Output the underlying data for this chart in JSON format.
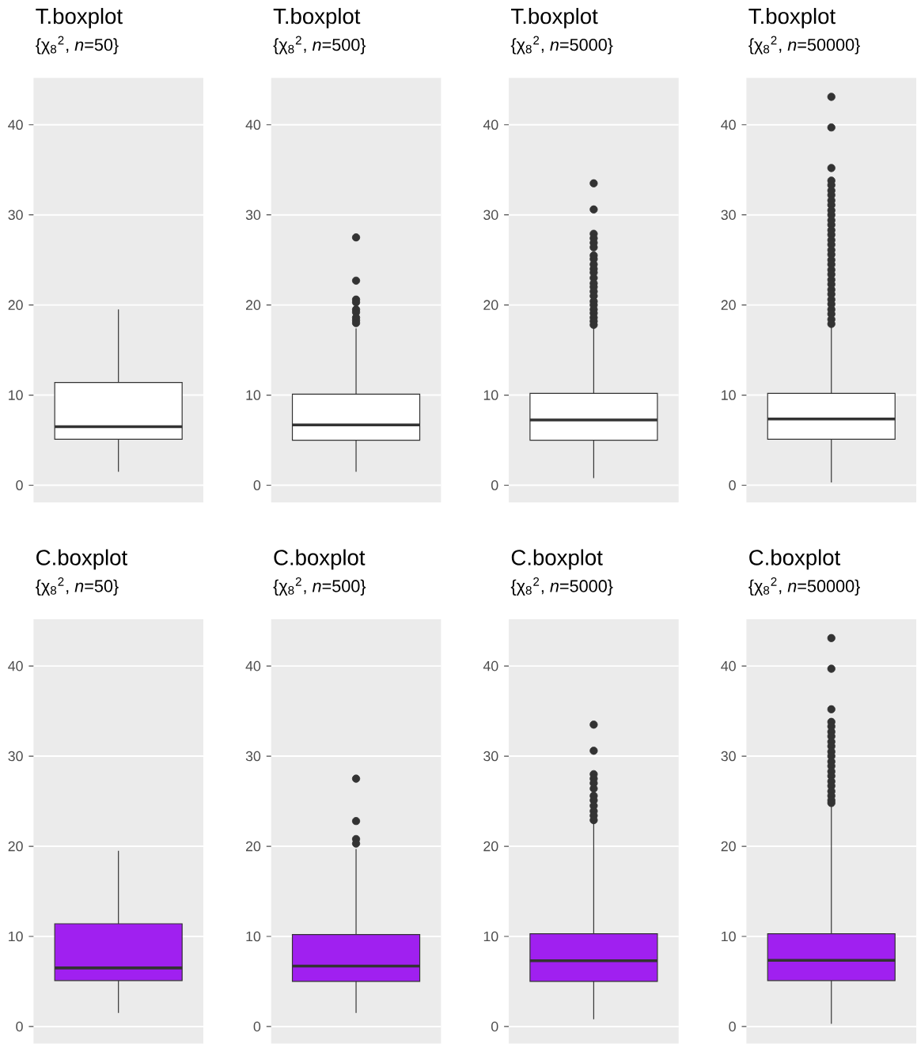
{
  "chart_data": [
    {
      "type": "box",
      "title": "T.boxplot",
      "subtitle": "{χ$_{8}$$^{2}$, *n*=50}",
      "categories": [
        null
      ],
      "color": "#ffffff",
      "ylim": [
        -1.9,
        45.2
      ],
      "yticks": [
        0,
        10,
        20,
        30,
        40
      ],
      "grid": "y",
      "boxes": [
        {
          "low": 1.5,
          "q1": 5.1,
          "median": 6.5,
          "q3": 11.4,
          "high": 19.5
        }
      ]
    },
    {
      "type": "box",
      "title": "T.boxplot",
      "subtitle": "{χ$_{8}$$^{2}$, *n*=500}",
      "categories": [
        null
      ],
      "color": "#ffffff",
      "ylim": [
        -1.9,
        45.2
      ],
      "yticks": [
        0,
        10,
        20,
        30,
        40
      ],
      "grid": "y",
      "boxes": [
        {
          "low": 1.5,
          "q1": 5.0,
          "median": 6.7,
          "q3": 10.1,
          "high": 17.4,
          "outliers": [
            27.5,
            22.7,
            20.6,
            20.3,
            19.5,
            19.2,
            18.6,
            18.3,
            18.0
          ]
        }
      ]
    },
    {
      "type": "box",
      "title": "T.boxplot",
      "subtitle": "{χ$_{8}$$^{2}$, *n*=5000}",
      "categories": [
        null
      ],
      "color": "#ffffff",
      "ylim": [
        -1.9,
        45.2
      ],
      "yticks": [
        0,
        10,
        20,
        30,
        40
      ],
      "grid": "y",
      "boxes": [
        {
          "low": 0.8,
          "q1": 5.0,
          "median": 7.25,
          "q3": 10.2,
          "high": 17.5,
          "outliers": [
            33.5,
            30.6,
            27.9,
            27.4,
            26.9,
            26.4,
            25.5,
            25.1,
            24.5,
            24.0,
            23.6,
            23.0,
            22.4,
            22.0,
            21.5,
            21.0,
            20.4,
            20.0,
            19.5,
            19.1,
            18.6,
            18.2,
            17.8
          ]
        }
      ]
    },
    {
      "type": "box",
      "title": "T.boxplot",
      "subtitle": "{χ$_{8}$$^{2}$, *n*=50000}",
      "categories": [
        null
      ],
      "color": "#ffffff",
      "ylim": [
        -1.9,
        45.2
      ],
      "yticks": [
        0,
        10,
        20,
        30,
        40
      ],
      "grid": "y",
      "boxes": [
        {
          "low": 0.3,
          "q1": 5.1,
          "median": 7.35,
          "q3": 10.2,
          "high": 17.7,
          "outliers": [
            43.1,
            39.7,
            35.2,
            33.8,
            33.3,
            32.7,
            32.2,
            31.6,
            31.1,
            30.5,
            30.0,
            29.4,
            28.9,
            28.3,
            27.8,
            27.2,
            26.7,
            26.1,
            25.6,
            25.0,
            24.5,
            23.9,
            23.4,
            22.8,
            22.3,
            21.7,
            21.2,
            20.6,
            20.1,
            19.5,
            19.0,
            18.4,
            17.9
          ]
        }
      ]
    },
    {
      "type": "box",
      "title": "C.boxplot",
      "subtitle": "{χ$_{8}$$^{2}$, *n*=50}",
      "categories": [
        null
      ],
      "color": "#a020f0",
      "ylim": [
        -1.9,
        45.2
      ],
      "yticks": [
        0,
        10,
        20,
        30,
        40
      ],
      "grid": "y",
      "boxes": [
        {
          "low": 1.5,
          "q1": 5.1,
          "median": 6.5,
          "q3": 11.4,
          "high": 19.5
        }
      ]
    },
    {
      "type": "box",
      "title": "C.boxplot",
      "subtitle": "{χ$_{8}$$^{2}$, *n*=500}",
      "categories": [
        null
      ],
      "color": "#a020f0",
      "ylim": [
        -1.9,
        45.2
      ],
      "yticks": [
        0,
        10,
        20,
        30,
        40
      ],
      "grid": "y",
      "boxes": [
        {
          "low": 1.5,
          "q1": 5.0,
          "median": 6.7,
          "q3": 10.2,
          "high": 19.7,
          "outliers": [
            27.5,
            22.8,
            20.8,
            20.3
          ]
        }
      ]
    },
    {
      "type": "box",
      "title": "C.boxplot",
      "subtitle": "{χ$_{8}$$^{2}$, *n*=5000}",
      "categories": [
        null
      ],
      "color": "#a020f0",
      "ylim": [
        -1.9,
        45.2
      ],
      "yticks": [
        0,
        10,
        20,
        30,
        40
      ],
      "grid": "y",
      "boxes": [
        {
          "low": 0.8,
          "q1": 5.0,
          "median": 7.3,
          "q3": 10.3,
          "high": 22.6,
          "outliers": [
            33.5,
            30.6,
            28.0,
            27.5,
            27.0,
            26.4,
            25.6,
            25.1,
            24.5,
            23.9,
            23.4,
            22.9
          ]
        }
      ]
    },
    {
      "type": "box",
      "title": "C.boxplot",
      "subtitle": "{χ$_{8}$$^{2}$, *n*=50000}",
      "categories": [
        null
      ],
      "color": "#a020f0",
      "ylim": [
        -1.9,
        45.2
      ],
      "yticks": [
        0,
        10,
        20,
        30,
        40
      ],
      "grid": "y",
      "boxes": [
        {
          "low": 0.3,
          "q1": 5.1,
          "median": 7.35,
          "q3": 10.3,
          "high": 24.6,
          "outliers": [
            43.1,
            39.7,
            35.2,
            33.8,
            33.3,
            32.7,
            32.2,
            31.6,
            31.1,
            30.5,
            30.0,
            29.4,
            28.9,
            28.3,
            27.8,
            27.2,
            26.7,
            26.1,
            25.6,
            25.1,
            24.8
          ]
        }
      ]
    }
  ]
}
